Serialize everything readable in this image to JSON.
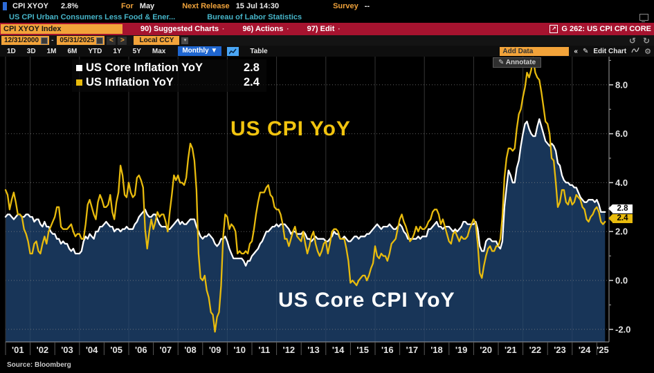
{
  "titlebar": {
    "ticker": "CPI XYOY",
    "last_value": "2.8%",
    "for_label": "For",
    "for_value": "May",
    "next_release_label": "Next Release",
    "next_release_value": "15 Jul 14:30",
    "survey_label": "Survey",
    "survey_value": "--"
  },
  "subtitle": {
    "description": "US CPI Urban Consumers Less Food & Ener...",
    "source_org": "Bureau of Labor Statistics"
  },
  "function_bar": {
    "security_input": "CPI XYOY Index",
    "menu_items": [
      "90) Suggested Charts",
      "96) Actions",
      "97) Edit"
    ],
    "chart_id": "G 262: US CPI CPI CORE"
  },
  "toolbar": {
    "date_from": "12/31/2000",
    "date_to": "05/31/2025",
    "prev": "<",
    "next": ">",
    "currency": "Local CCY",
    "ranges": [
      "1D",
      "3D",
      "1M",
      "6M",
      "YTD",
      "1Y",
      "5Y",
      "Max"
    ],
    "frequency": "Monthly ▼",
    "table_label": "Table",
    "add_data_label": "Add Data",
    "collapse_label": "«",
    "edit_chart_label": "Edit Chart",
    "annotate_label": "Annotate",
    "undo": "↺",
    "redo": "↻",
    "pencil": "✎",
    "gear": "⚙"
  },
  "legend": {
    "items": [
      {
        "label": "US Core Inflation YoY",
        "value": "2.8",
        "color": "#ffffff"
      },
      {
        "label": "US Inflation YoY",
        "value": "2.4",
        "color": "#e8bb0d"
      }
    ]
  },
  "annotations": {
    "headline": "US CPI YoY",
    "core": "US Core CPI YoY"
  },
  "source_note": "Source: Bloomberg",
  "chart_data": {
    "type": "line",
    "title": "US CPI YoY vs US Core CPI YoY",
    "x_start_year": 2001,
    "x_frequency": "monthly",
    "x_tick_labels": [
      "'01",
      "'02",
      "'03",
      "'04",
      "'05",
      "'06",
      "'07",
      "'08",
      "'09",
      "'10",
      "'11",
      "'12",
      "'13",
      "'14",
      "'15",
      "'16",
      "'17",
      "'18",
      "'19",
      "'20",
      "'21",
      "'22",
      "'23",
      "'24",
      "'25"
    ],
    "y_ticks": [
      8.0,
      6.0,
      4.0,
      2.0,
      0.0,
      -2.0
    ],
    "ylim": [
      -2.5,
      9.3
    ],
    "grid": {
      "vertical_every_years": 2,
      "horizontal": "dotted"
    },
    "legend_position": "top-left",
    "last_values": {
      "core": "2.8",
      "headline": "2.4"
    },
    "colors": {
      "core_line": "#ffffff",
      "headline_line": "#e8bb0d",
      "core_fill": "#183558"
    },
    "series": [
      {
        "name": "US Core Inflation YoY",
        "color": "#ffffff",
        "fill": true,
        "values": [
          2.6,
          2.7,
          2.7,
          2.6,
          2.5,
          2.6,
          2.7,
          2.7,
          2.6,
          2.6,
          2.7,
          2.7,
          2.6,
          2.6,
          2.4,
          2.5,
          2.5,
          2.3,
          2.2,
          2.4,
          2.2,
          2.2,
          2.0,
          1.9,
          1.9,
          1.7,
          1.7,
          1.5,
          1.6,
          1.5,
          1.5,
          1.3,
          1.2,
          1.3,
          1.1,
          1.1,
          1.1,
          1.2,
          1.6,
          1.8,
          1.7,
          1.9,
          1.8,
          1.7,
          2.0,
          2.0,
          2.2,
          2.2,
          2.3,
          2.4,
          2.3,
          2.2,
          2.2,
          2.0,
          2.1,
          2.1,
          2.0,
          2.1,
          2.1,
          2.2,
          2.1,
          2.1,
          2.1,
          2.3,
          2.4,
          2.6,
          2.7,
          2.8,
          2.9,
          2.7,
          2.6,
          2.6,
          2.7,
          2.7,
          2.5,
          2.3,
          2.2,
          2.2,
          2.2,
          2.1,
          2.1,
          2.2,
          2.3,
          2.4,
          2.5,
          2.3,
          2.4,
          2.3,
          2.3,
          2.4,
          2.5,
          2.5,
          2.5,
          2.2,
          2.0,
          1.8,
          1.7,
          1.8,
          1.8,
          1.9,
          1.8,
          1.7,
          1.5,
          1.4,
          1.5,
          1.7,
          1.7,
          1.8,
          1.6,
          1.3,
          1.1,
          0.9,
          0.9,
          0.9,
          0.9,
          0.9,
          0.8,
          0.6,
          0.8,
          0.8,
          1.0,
          1.1,
          1.2,
          1.3,
          1.5,
          1.6,
          1.8,
          2.0,
          2.0,
          2.1,
          2.2,
          2.2,
          2.3,
          2.2,
          2.3,
          2.3,
          2.3,
          2.2,
          2.1,
          1.9,
          2.0,
          2.0,
          1.9,
          1.9,
          1.9,
          2.0,
          1.9,
          1.7,
          1.7,
          1.6,
          1.7,
          1.8,
          1.7,
          1.7,
          1.7,
          1.7,
          1.6,
          1.6,
          1.7,
          1.8,
          2.0,
          1.9,
          1.9,
          1.7,
          1.7,
          1.8,
          1.7,
          1.6,
          1.6,
          1.7,
          1.8,
          1.8,
          1.7,
          1.8,
          1.8,
          1.8,
          1.9,
          1.9,
          2.0,
          2.1,
          2.2,
          2.3,
          2.2,
          2.1,
          2.2,
          2.2,
          2.2,
          2.3,
          2.2,
          2.1,
          2.1,
          2.2,
          2.3,
          2.2,
          2.0,
          1.9,
          1.7,
          1.7,
          1.7,
          1.7,
          1.7,
          1.8,
          1.7,
          1.8,
          1.8,
          1.8,
          2.1,
          2.1,
          2.2,
          2.3,
          2.4,
          2.2,
          2.2,
          2.1,
          2.2,
          2.2,
          2.2,
          2.1,
          2.0,
          2.1,
          2.0,
          2.1,
          2.2,
          2.4,
          2.4,
          2.3,
          2.3,
          2.3,
          2.3,
          2.4,
          2.1,
          1.4,
          1.2,
          1.2,
          1.6,
          1.7,
          1.7,
          1.6,
          1.6,
          1.6,
          1.4,
          1.3,
          1.6,
          3.0,
          3.8,
          4.5,
          4.3,
          4.0,
          4.0,
          4.6,
          4.9,
          5.5,
          6.0,
          6.4,
          6.5,
          6.2,
          6.0,
          5.9,
          5.9,
          6.3,
          6.6,
          6.3,
          6.0,
          5.7,
          5.6,
          5.5,
          5.6,
          5.5,
          5.3,
          4.8,
          4.7,
          4.3,
          4.1,
          4.0,
          4.0,
          3.9,
          3.9,
          3.8,
          3.8,
          3.6,
          3.4,
          3.3,
          3.2,
          3.2,
          3.3,
          3.3,
          3.3,
          3.2,
          3.3,
          3.1,
          2.8,
          2.8,
          2.8
        ]
      },
      {
        "name": "US Inflation YoY",
        "color": "#e8bb0d",
        "fill": false,
        "values": [
          3.7,
          3.5,
          2.9,
          3.3,
          3.6,
          3.2,
          2.7,
          2.7,
          2.6,
          2.1,
          1.9,
          1.6,
          1.1,
          1.1,
          1.5,
          1.6,
          1.2,
          1.1,
          1.5,
          1.8,
          1.5,
          2.0,
          2.2,
          2.4,
          2.6,
          3.0,
          3.0,
          2.2,
          2.1,
          2.1,
          2.1,
          2.2,
          2.3,
          2.0,
          1.8,
          1.9,
          1.9,
          1.7,
          1.7,
          2.3,
          3.1,
          3.3,
          3.0,
          2.7,
          2.5,
          3.2,
          3.5,
          3.3,
          3.0,
          3.0,
          3.1,
          3.5,
          2.8,
          2.5,
          3.2,
          3.6,
          4.7,
          4.3,
          3.5,
          3.4,
          4.0,
          3.6,
          3.4,
          3.5,
          4.2,
          4.3,
          4.1,
          3.8,
          2.1,
          1.3,
          2.0,
          2.5,
          2.1,
          2.4,
          2.8,
          2.6,
          2.7,
          2.7,
          2.4,
          2.0,
          2.8,
          3.5,
          4.3,
          4.1,
          4.3,
          4.0,
          4.0,
          3.9,
          4.2,
          5.0,
          5.6,
          5.4,
          4.9,
          3.7,
          1.1,
          0.1,
          0.0,
          0.2,
          -0.4,
          -0.7,
          -1.3,
          -1.4,
          -2.1,
          -1.5,
          -1.3,
          -0.2,
          1.8,
          2.7,
          2.6,
          2.1,
          2.3,
          2.2,
          2.0,
          1.1,
          1.2,
          1.1,
          1.1,
          1.2,
          1.1,
          1.5,
          1.6,
          2.1,
          2.7,
          3.2,
          3.6,
          3.6,
          3.6,
          3.8,
          3.9,
          3.5,
          3.4,
          3.0,
          2.9,
          2.9,
          2.7,
          2.3,
          1.7,
          1.7,
          1.4,
          1.7,
          2.0,
          2.2,
          1.8,
          1.7,
          1.6,
          2.0,
          1.5,
          1.1,
          1.4,
          1.8,
          2.0,
          1.5,
          1.2,
          1.0,
          1.2,
          1.5,
          1.6,
          1.1,
          1.5,
          2.0,
          2.1,
          2.1,
          2.0,
          1.7,
          1.7,
          1.7,
          1.3,
          0.8,
          -0.1,
          0.0,
          -0.1,
          -0.2,
          0.0,
          0.1,
          0.2,
          0.2,
          0.0,
          0.2,
          0.5,
          0.7,
          1.4,
          1.0,
          0.9,
          1.1,
          1.0,
          1.0,
          0.8,
          1.1,
          1.5,
          1.6,
          1.7,
          2.1,
          2.5,
          2.7,
          2.4,
          2.2,
          1.9,
          1.6,
          1.7,
          1.9,
          2.2,
          2.0,
          2.2,
          2.1,
          2.1,
          2.2,
          2.4,
          2.5,
          2.8,
          2.9,
          2.9,
          2.7,
          2.3,
          2.5,
          2.2,
          1.9,
          1.6,
          1.5,
          1.9,
          2.0,
          1.8,
          1.6,
          1.8,
          1.7,
          1.7,
          1.8,
          2.1,
          2.3,
          2.5,
          2.3,
          1.5,
          0.3,
          0.1,
          0.6,
          1.0,
          1.3,
          1.4,
          1.2,
          1.2,
          1.4,
          1.4,
          1.7,
          2.6,
          4.2,
          5.0,
          5.4,
          5.4,
          5.3,
          5.4,
          6.2,
          6.8,
          7.0,
          7.5,
          7.9,
          8.5,
          8.3,
          8.6,
          9.1,
          8.5,
          8.3,
          8.2,
          7.7,
          7.1,
          6.5,
          6.4,
          6.0,
          5.0,
          4.9,
          4.0,
          3.0,
          3.2,
          3.7,
          3.7,
          3.2,
          3.1,
          3.4,
          3.1,
          3.2,
          3.5,
          3.4,
          3.3,
          3.0,
          2.9,
          2.5,
          2.4,
          2.6,
          2.7,
          2.9,
          3.0,
          2.8,
          2.4,
          2.3,
          2.4
        ]
      }
    ]
  }
}
